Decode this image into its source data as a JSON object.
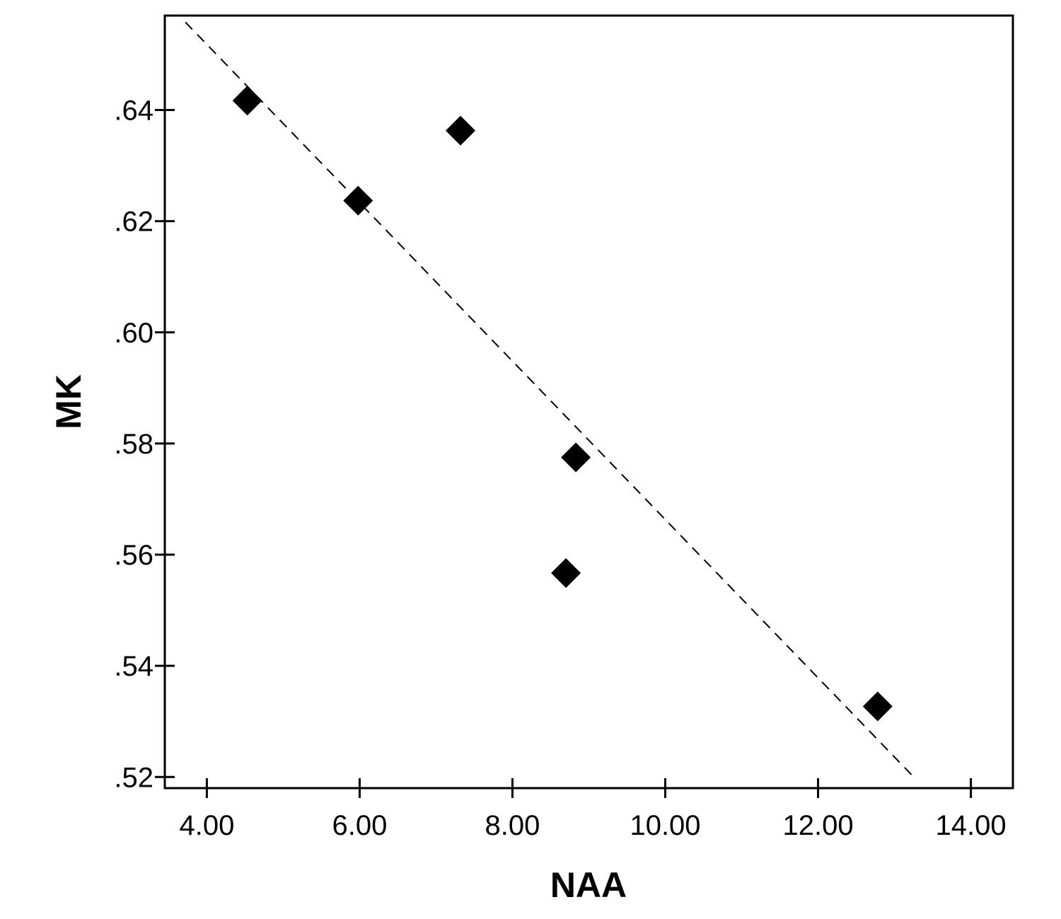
{
  "chart_data": {
    "type": "scatter",
    "xlabel": "NAA",
    "ylabel": "MK",
    "xlim": [
      3.45,
      14.55
    ],
    "ylim": [
      0.518,
      0.657
    ],
    "x_ticks": [
      4,
      6,
      8,
      10,
      12,
      14
    ],
    "x_tick_labels": [
      "4.00",
      "6.00",
      "8.00",
      "10.00",
      "12.00",
      "14.00"
    ],
    "y_ticks": [
      0.52,
      0.54,
      0.56,
      0.58,
      0.6,
      0.62,
      0.64
    ],
    "y_tick_labels": [
      ".52",
      ".54",
      ".56",
      ".58",
      ".60",
      ".62",
      ".64"
    ],
    "grid": false,
    "marker": "diamond",
    "marker_color": "#000000",
    "points": [
      {
        "x": 4.53,
        "y": 0.6417
      },
      {
        "x": 5.98,
        "y": 0.6237
      },
      {
        "x": 7.32,
        "y": 0.6363
      },
      {
        "x": 8.83,
        "y": 0.5775
      },
      {
        "x": 8.7,
        "y": 0.5567
      },
      {
        "x": 12.78,
        "y": 0.5327
      }
    ],
    "fit_line": {
      "style": "dashed",
      "color": "#000000",
      "x": [
        3.72,
        13.28
      ],
      "y": [
        0.6558,
        0.5196
      ]
    }
  }
}
